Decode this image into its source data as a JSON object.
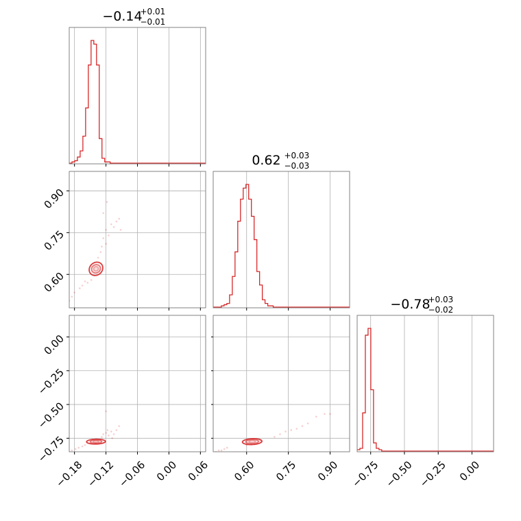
{
  "chart_data": {
    "type": "corner",
    "colors": {
      "accent": "#d62728",
      "grid": "#b0b0b0",
      "frame": "#808080"
    },
    "grid": true,
    "parameters": [
      {
        "title": {
          "value": "−0.14",
          "upper": "+0.01",
          "lower": "−0.01"
        },
        "range": [
          -0.19,
          0.07
        ],
        "ticks": [
          -0.18,
          -0.12,
          -0.06,
          0.0,
          0.06
        ],
        "tick_labels": [
          "−0.18",
          "−0.12",
          "−0.06",
          "0.00",
          "0.06"
        ]
      },
      {
        "title": {
          "value": "0.62",
          "upper": "+0.03",
          "lower": "−0.03"
        },
        "range": [
          0.48,
          0.97
        ],
        "ticks": [
          0.6,
          0.75,
          0.9
        ],
        "tick_labels": [
          "0.60",
          "0.75",
          "0.90"
        ]
      },
      {
        "title": {
          "value": "−0.78",
          "upper": "+0.03",
          "lower": "−0.02"
        },
        "range": [
          -0.85,
          0.16
        ],
        "ticks": [
          -0.75,
          -0.5,
          -0.25,
          0.0
        ],
        "tick_labels": [
          "−0.75",
          "−0.50",
          "−0.25",
          "0.00"
        ]
      }
    ],
    "histograms": [
      {
        "param": 0,
        "bin_start": -0.19,
        "bin_width": 0.0052,
        "counts": [
          0,
          1,
          2,
          5,
          10,
          22,
          45,
          80,
          100,
          97,
          80,
          20,
          4,
          1,
          1,
          0,
          0,
          0,
          0,
          0,
          0,
          0,
          0,
          0,
          0,
          0,
          0,
          0,
          0,
          0,
          0,
          0,
          0,
          0,
          0,
          0,
          0,
          0,
          0,
          0,
          0,
          0,
          0,
          0,
          0,
          0,
          0,
          0,
          0,
          0
        ]
      },
      {
        "param": 1,
        "bin_start": 0.48,
        "bin_width": 0.0098,
        "counts": [
          0,
          0,
          0,
          1,
          2,
          3,
          10,
          25,
          45,
          70,
          88,
          97,
          100,
          88,
          74,
          55,
          29,
          18,
          6,
          3,
          1,
          1,
          0,
          0,
          0,
          0,
          0,
          0,
          0,
          0,
          0,
          0,
          0,
          0,
          0,
          0,
          0,
          0,
          0,
          0,
          0,
          0,
          0,
          0,
          0,
          0,
          0,
          0,
          0,
          0
        ]
      },
      {
        "param": 2,
        "bin_start": -0.85,
        "bin_width": 0.0202,
        "counts": [
          1,
          2,
          28,
          85,
          90,
          45,
          6,
          2,
          1,
          0,
          0,
          0,
          0,
          0,
          0,
          0,
          0,
          0,
          0,
          0,
          0,
          0,
          0,
          0,
          0,
          0,
          0,
          0,
          0,
          0,
          0,
          0,
          0,
          0,
          0,
          0,
          0,
          0,
          0,
          0,
          0,
          0,
          0,
          0,
          0,
          0,
          0,
          0,
          0,
          0
        ]
      }
    ],
    "contours": [
      {
        "x_param": 0,
        "y_param": 1,
        "center": [
          -0.139,
          0.62
        ],
        "levels": [
          [
            0.0045,
            0.008,
            0.056
          ],
          [
            0.0085,
            0.015,
            0.1
          ],
          [
            0.013,
            0.024,
            0.15
          ]
        ]
      },
      {
        "x_param": 0,
        "y_param": 2,
        "center": [
          -0.139,
          -0.775
        ],
        "levels": [
          [
            0.0055,
            0.007,
            0.025
          ],
          [
            0.011,
            0.012,
            0.05
          ],
          [
            0.018,
            0.018,
            0.08
          ]
        ]
      },
      {
        "x_param": 1,
        "y_param": 2,
        "center": [
          0.62,
          -0.775
        ],
        "levels": [
          [
            0.012,
            0.009,
            0.045
          ],
          [
            0.023,
            0.015,
            0.09
          ],
          [
            0.035,
            0.022,
            0.14
          ]
        ]
      }
    ],
    "scatter": [
      {
        "x_param": 0,
        "y_param": 1,
        "points": [
          [
            -0.19,
            0.505
          ],
          [
            -0.185,
            0.52
          ],
          [
            -0.18,
            0.535
          ],
          [
            -0.17,
            0.55
          ],
          [
            -0.165,
            0.56
          ],
          [
            -0.16,
            0.575
          ],
          [
            -0.128,
            0.7
          ],
          [
            -0.125,
            0.73
          ],
          [
            -0.12,
            0.71
          ],
          [
            -0.12,
            0.76
          ],
          [
            -0.115,
            0.74
          ],
          [
            -0.11,
            0.78
          ],
          [
            -0.105,
            0.77
          ],
          [
            -0.1,
            0.79
          ],
          [
            -0.095,
            0.8
          ],
          [
            -0.118,
            0.86
          ],
          [
            -0.13,
            0.68
          ],
          [
            -0.148,
            0.58
          ],
          [
            -0.155,
            0.57
          ],
          [
            -0.135,
            0.66
          ],
          [
            -0.092,
            0.76
          ],
          [
            -0.125,
            0.82
          ]
        ]
      },
      {
        "x_param": 0,
        "y_param": 2,
        "points": [
          [
            -0.19,
            -0.85
          ],
          [
            -0.185,
            -0.84
          ],
          [
            -0.178,
            -0.83
          ],
          [
            -0.172,
            -0.82
          ],
          [
            -0.165,
            -0.81
          ],
          [
            -0.16,
            -0.8
          ],
          [
            -0.128,
            -0.74
          ],
          [
            -0.125,
            -0.72
          ],
          [
            -0.12,
            -0.71
          ],
          [
            -0.115,
            -0.73
          ],
          [
            -0.11,
            -0.7
          ],
          [
            -0.105,
            -0.72
          ],
          [
            -0.1,
            -0.69
          ],
          [
            -0.095,
            -0.66
          ],
          [
            -0.12,
            -0.55
          ],
          [
            -0.13,
            -0.76
          ],
          [
            -0.108,
            -0.75
          ],
          [
            -0.14,
            -0.79
          ],
          [
            -0.117,
            -0.69
          ]
        ]
      },
      {
        "x_param": 1,
        "y_param": 2,
        "points": [
          [
            0.49,
            -0.85
          ],
          [
            0.5,
            -0.84
          ],
          [
            0.51,
            -0.84
          ],
          [
            0.52,
            -0.83
          ],
          [
            0.53,
            -0.82
          ],
          [
            0.72,
            -0.72
          ],
          [
            0.74,
            -0.7
          ],
          [
            0.76,
            -0.69
          ],
          [
            0.78,
            -0.68
          ],
          [
            0.8,
            -0.66
          ],
          [
            0.82,
            -0.64
          ],
          [
            0.85,
            -0.59
          ],
          [
            0.88,
            -0.57
          ],
          [
            0.9,
            -0.57
          ],
          [
            0.6,
            -0.8
          ],
          [
            0.65,
            -0.77
          ],
          [
            0.7,
            -0.74
          ]
        ]
      }
    ]
  }
}
